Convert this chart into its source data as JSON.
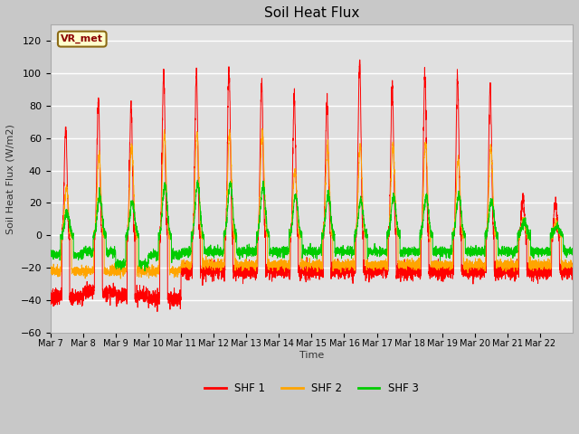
{
  "title": "Soil Heat Flux",
  "ylabel": "Soil Heat Flux (W/m2)",
  "xlabel": "Time",
  "ylim": [
    -60,
    130
  ],
  "yticks": [
    -60,
    -40,
    -20,
    0,
    20,
    40,
    60,
    80,
    100,
    120
  ],
  "fig_bg_color": "#c8c8c8",
  "plot_bg_color": "#e0e0e0",
  "shf1_color": "#ff0000",
  "shf2_color": "#ffa500",
  "shf3_color": "#00cc00",
  "legend_labels": [
    "SHF 1",
    "SHF 2",
    "SHF 3"
  ],
  "annotation_text": "VR_met",
  "n_days": 16,
  "points_per_day": 288,
  "xtick_labels": [
    "Mar 7",
    "Mar 8",
    "Mar 9",
    "Mar 10",
    "Mar 11",
    "Mar 12",
    "Mar 13",
    "Mar 14",
    "Mar 15",
    "Mar 16",
    "Mar 17",
    "Mar 18",
    "Mar 19",
    "Mar 20",
    "Mar 21",
    "Mar 22"
  ],
  "day_peaks_shf1": [
    67,
    83,
    80,
    101,
    99,
    103,
    97,
    85,
    84,
    107,
    93,
    100,
    97,
    93,
    25,
    20
  ],
  "day_peaks_shf2": [
    30,
    50,
    55,
    63,
    63,
    64,
    63,
    40,
    55,
    55,
    55,
    57,
    48,
    55,
    10,
    8
  ],
  "day_peaks_shf3": [
    14,
    24,
    20,
    31,
    32,
    32,
    30,
    25,
    25,
    22,
    24,
    24,
    25,
    22,
    8,
    5
  ],
  "night_shf1": [
    -38,
    -35,
    -37,
    -39,
    -22,
    -22,
    -22,
    -22,
    -22,
    -22,
    -22,
    -22,
    -22,
    -22,
    -22,
    -22
  ],
  "night_shf2": [
    -22,
    -22,
    -22,
    -22,
    -18,
    -18,
    -18,
    -18,
    -18,
    -18,
    -18,
    -18,
    -18,
    -18,
    -18,
    -18
  ],
  "night_shf3": [
    -12,
    -10,
    -18,
    -12,
    -10,
    -10,
    -10,
    -10,
    -10,
    -10,
    -10,
    -10,
    -10,
    -10,
    -10,
    -10
  ]
}
